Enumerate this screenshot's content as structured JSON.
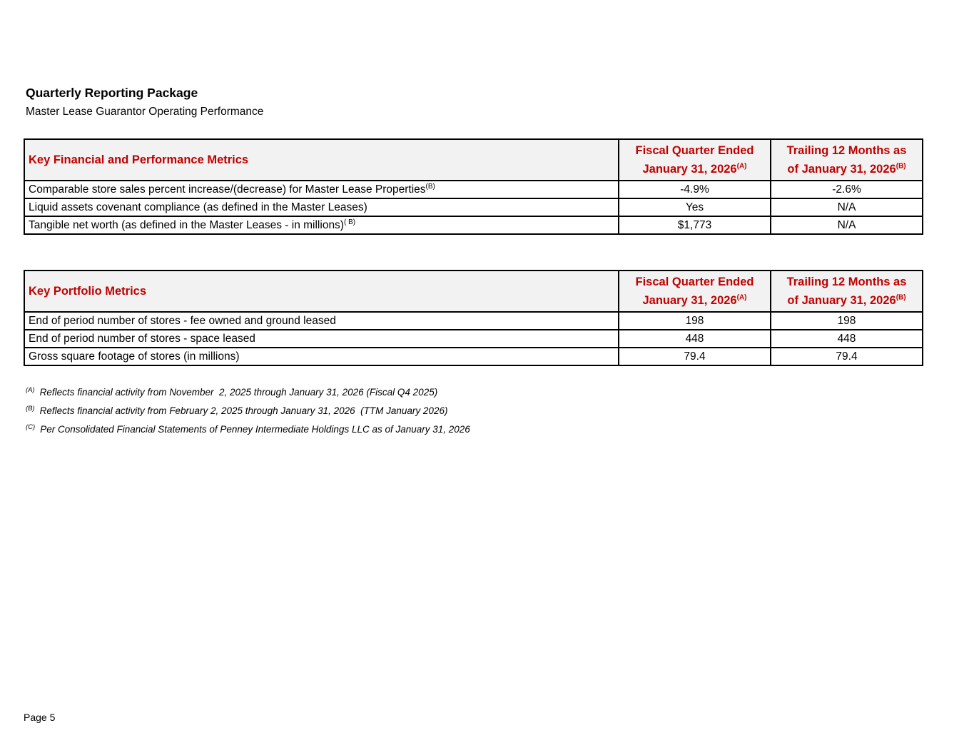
{
  "page": {
    "title": "Quarterly Reporting Package",
    "subtitle": "Master Lease Guarantor Operating Performance",
    "footer": "Page 5"
  },
  "colors": {
    "accent_red": "#C00000",
    "header_bg": "#F2F2F2",
    "border": "#000000"
  },
  "columns": {
    "fiscal_quarter": {
      "line1": "Fiscal Quarter Ended",
      "line2": "January 31, 2026",
      "sup": "(A)"
    },
    "trailing12": {
      "line1": "Trailing 12 Months as",
      "line2": "of January 31, 2026",
      "sup": "(B)"
    }
  },
  "table1": {
    "title": "Key Financial and Performance Metrics",
    "rows": [
      {
        "label": "Comparable store sales percent increase/(decrease) for Master Lease Properties",
        "sup": "(B)",
        "q": "-4.9%",
        "ttm": "-2.6%"
      },
      {
        "label": "Liquid assets covenant compliance (as defined in the Master Leases)",
        "sup": "",
        "q": "Yes",
        "ttm": "N/A"
      },
      {
        "label": "Tangible net worth (as defined in the Master Leases - in millions)",
        "sup": "( B)",
        "q": "$1,773",
        "ttm": "N/A"
      }
    ]
  },
  "table2": {
    "title": "Key Portfolio Metrics",
    "rows": [
      {
        "label": "End of period number of stores - fee owned and ground leased",
        "sup": "",
        "q": "198",
        "ttm": "198"
      },
      {
        "label": "End of period number of stores - space leased",
        "sup": "",
        "q": "448",
        "ttm": "448"
      },
      {
        "label": "Gross square footage of stores (in millions)",
        "sup": "",
        "q": "79.4",
        "ttm": "79.4"
      }
    ]
  },
  "footnotes": [
    {
      "sup": "(A)",
      "text": "Reflects financial activity from November  2, 2025 through January 31, 2026 (Fiscal Q4 2025)"
    },
    {
      "sup": "(B)",
      "text": "Reflects financial activity from February 2, 2025 through January 31, 2026  (TTM January 2026)"
    },
    {
      "sup": "(C)",
      "text": "Per Consolidated Financial Statements of Penney Intermediate Holdings LLC as of January 31, 2026"
    }
  ]
}
